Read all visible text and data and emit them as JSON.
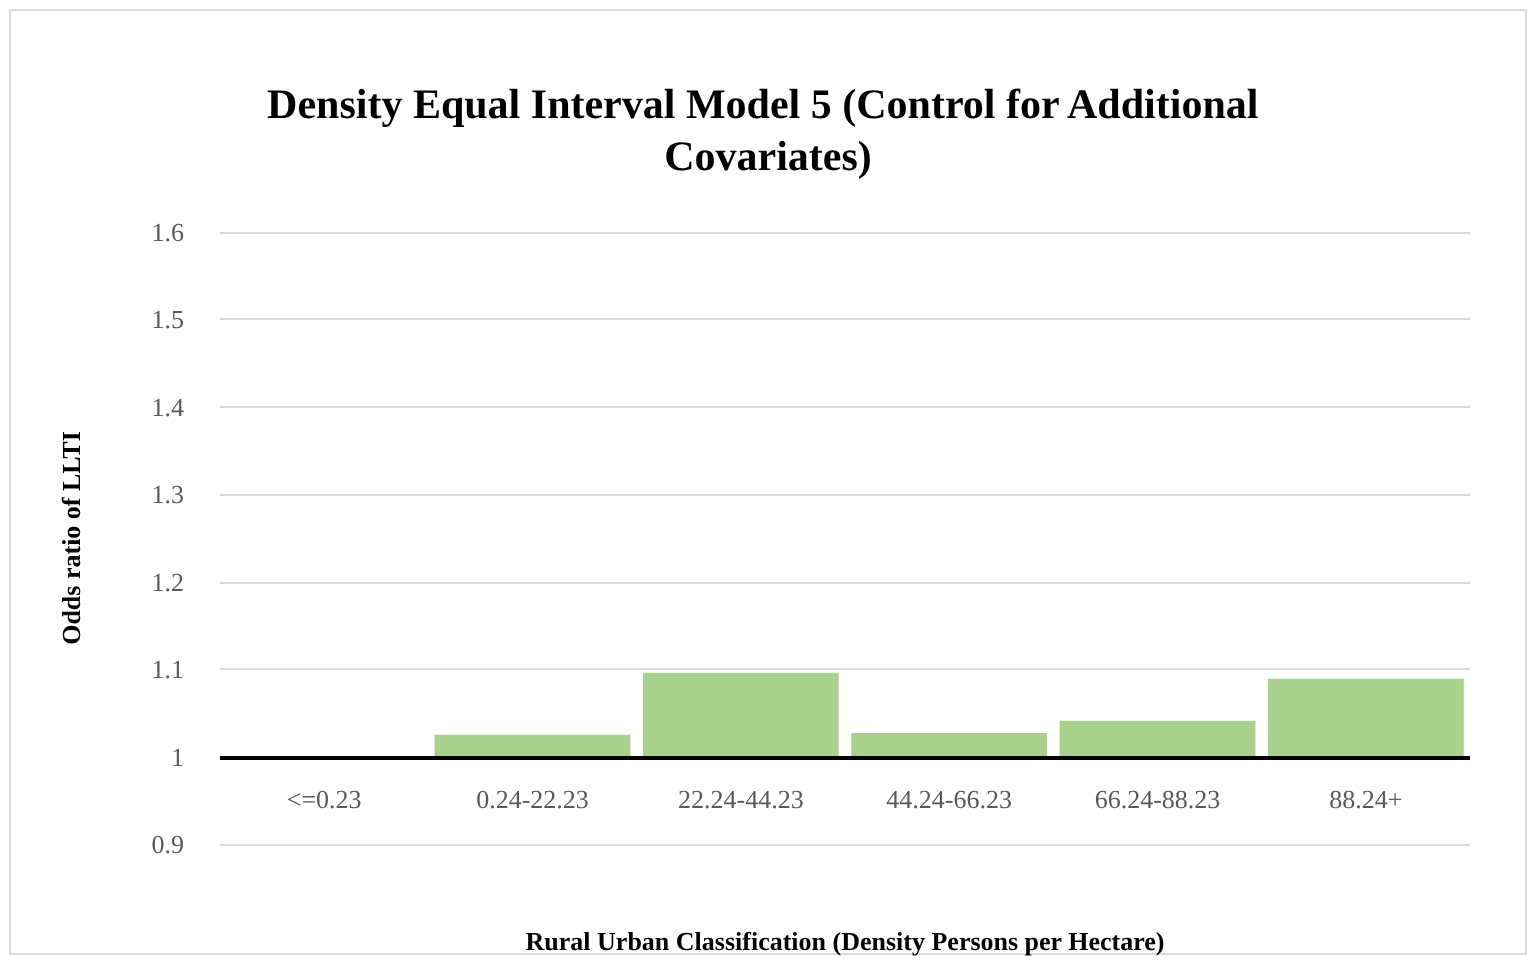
{
  "chart_data": {
    "type": "bar",
    "title": "Density Equal Interval Model 5 (Control for Additional Covariates)",
    "xlabel": "Rural Urban Classification (Density Persons per Hectare)",
    "ylabel": "Odds ratio of LLTI",
    "categories": [
      "<=0.23",
      "0.24-22.23",
      "22.24-44.23",
      "44.24-66.23",
      "66.24-88.23",
      "88.24+"
    ],
    "values": [
      null,
      0.025,
      0.096,
      0.027,
      0.041,
      0.089
    ],
    "base": [
      null,
      1,
      1,
      1,
      1,
      1
    ],
    "color": "#a9d18e",
    "ylim": [
      0.9,
      1.6
    ],
    "yticks": [
      0.9,
      1,
      1.1,
      1.2,
      1.3,
      1.4,
      1.5,
      1.6
    ],
    "grid": "y"
  }
}
